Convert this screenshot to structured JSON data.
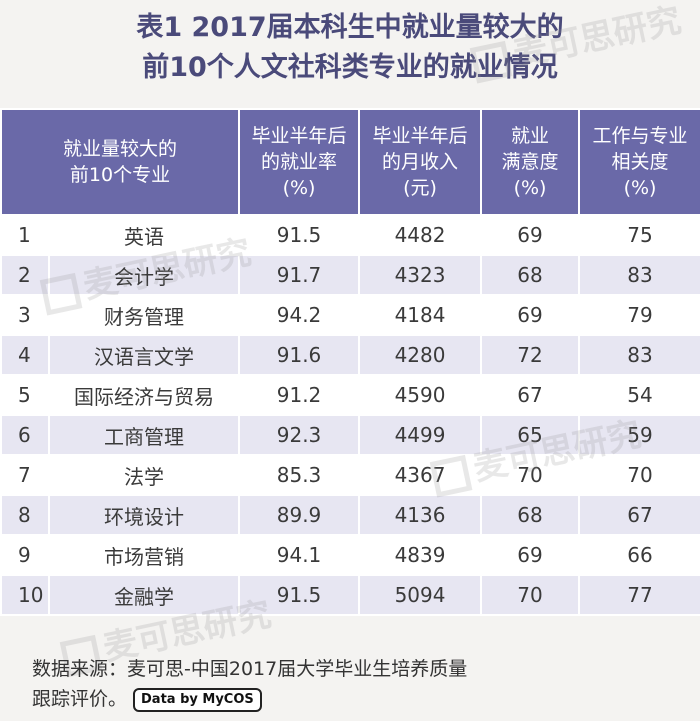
{
  "title": {
    "line1": "表1 2017届本科生中就业量较大的",
    "line2": "前10个人文社科类专业的就业情况"
  },
  "table": {
    "headers": [
      [
        "就业量较大的",
        "前10个专业"
      ],
      [
        "毕业半年后",
        "的就业率",
        "(%)"
      ],
      [
        "毕业半年后",
        "的月收入",
        "(元)"
      ],
      [
        "就业",
        "满意度",
        "(%)"
      ],
      [
        "工作与专业",
        "相关度",
        "(%)"
      ]
    ],
    "rows": [
      [
        "1",
        "英语",
        "91.5",
        "4482",
        "69",
        "75"
      ],
      [
        "2",
        "会计学",
        "91.7",
        "4323",
        "68",
        "83"
      ],
      [
        "3",
        "财务管理",
        "94.2",
        "4184",
        "69",
        "79"
      ],
      [
        "4",
        "汉语言文学",
        "91.6",
        "4280",
        "72",
        "83"
      ],
      [
        "5",
        "国际经济与贸易",
        "91.2",
        "4590",
        "67",
        "54"
      ],
      [
        "6",
        "工商管理",
        "92.3",
        "4499",
        "65",
        "59"
      ],
      [
        "7",
        "法学",
        "85.3",
        "4367",
        "70",
        "70"
      ],
      [
        "8",
        "环境设计",
        "89.9",
        "4136",
        "68",
        "67"
      ],
      [
        "9",
        "市场营销",
        "94.1",
        "4839",
        "69",
        "66"
      ],
      [
        "10",
        "金融学",
        "91.5",
        "5094",
        "70",
        "77"
      ]
    ]
  },
  "footer": {
    "line1": "数据来源：麦可思-中国2017届大学毕业生培养质量",
    "line2": "跟踪评价。",
    "badge": "Data by MyCOS"
  },
  "watermark": "麦可思研究"
}
